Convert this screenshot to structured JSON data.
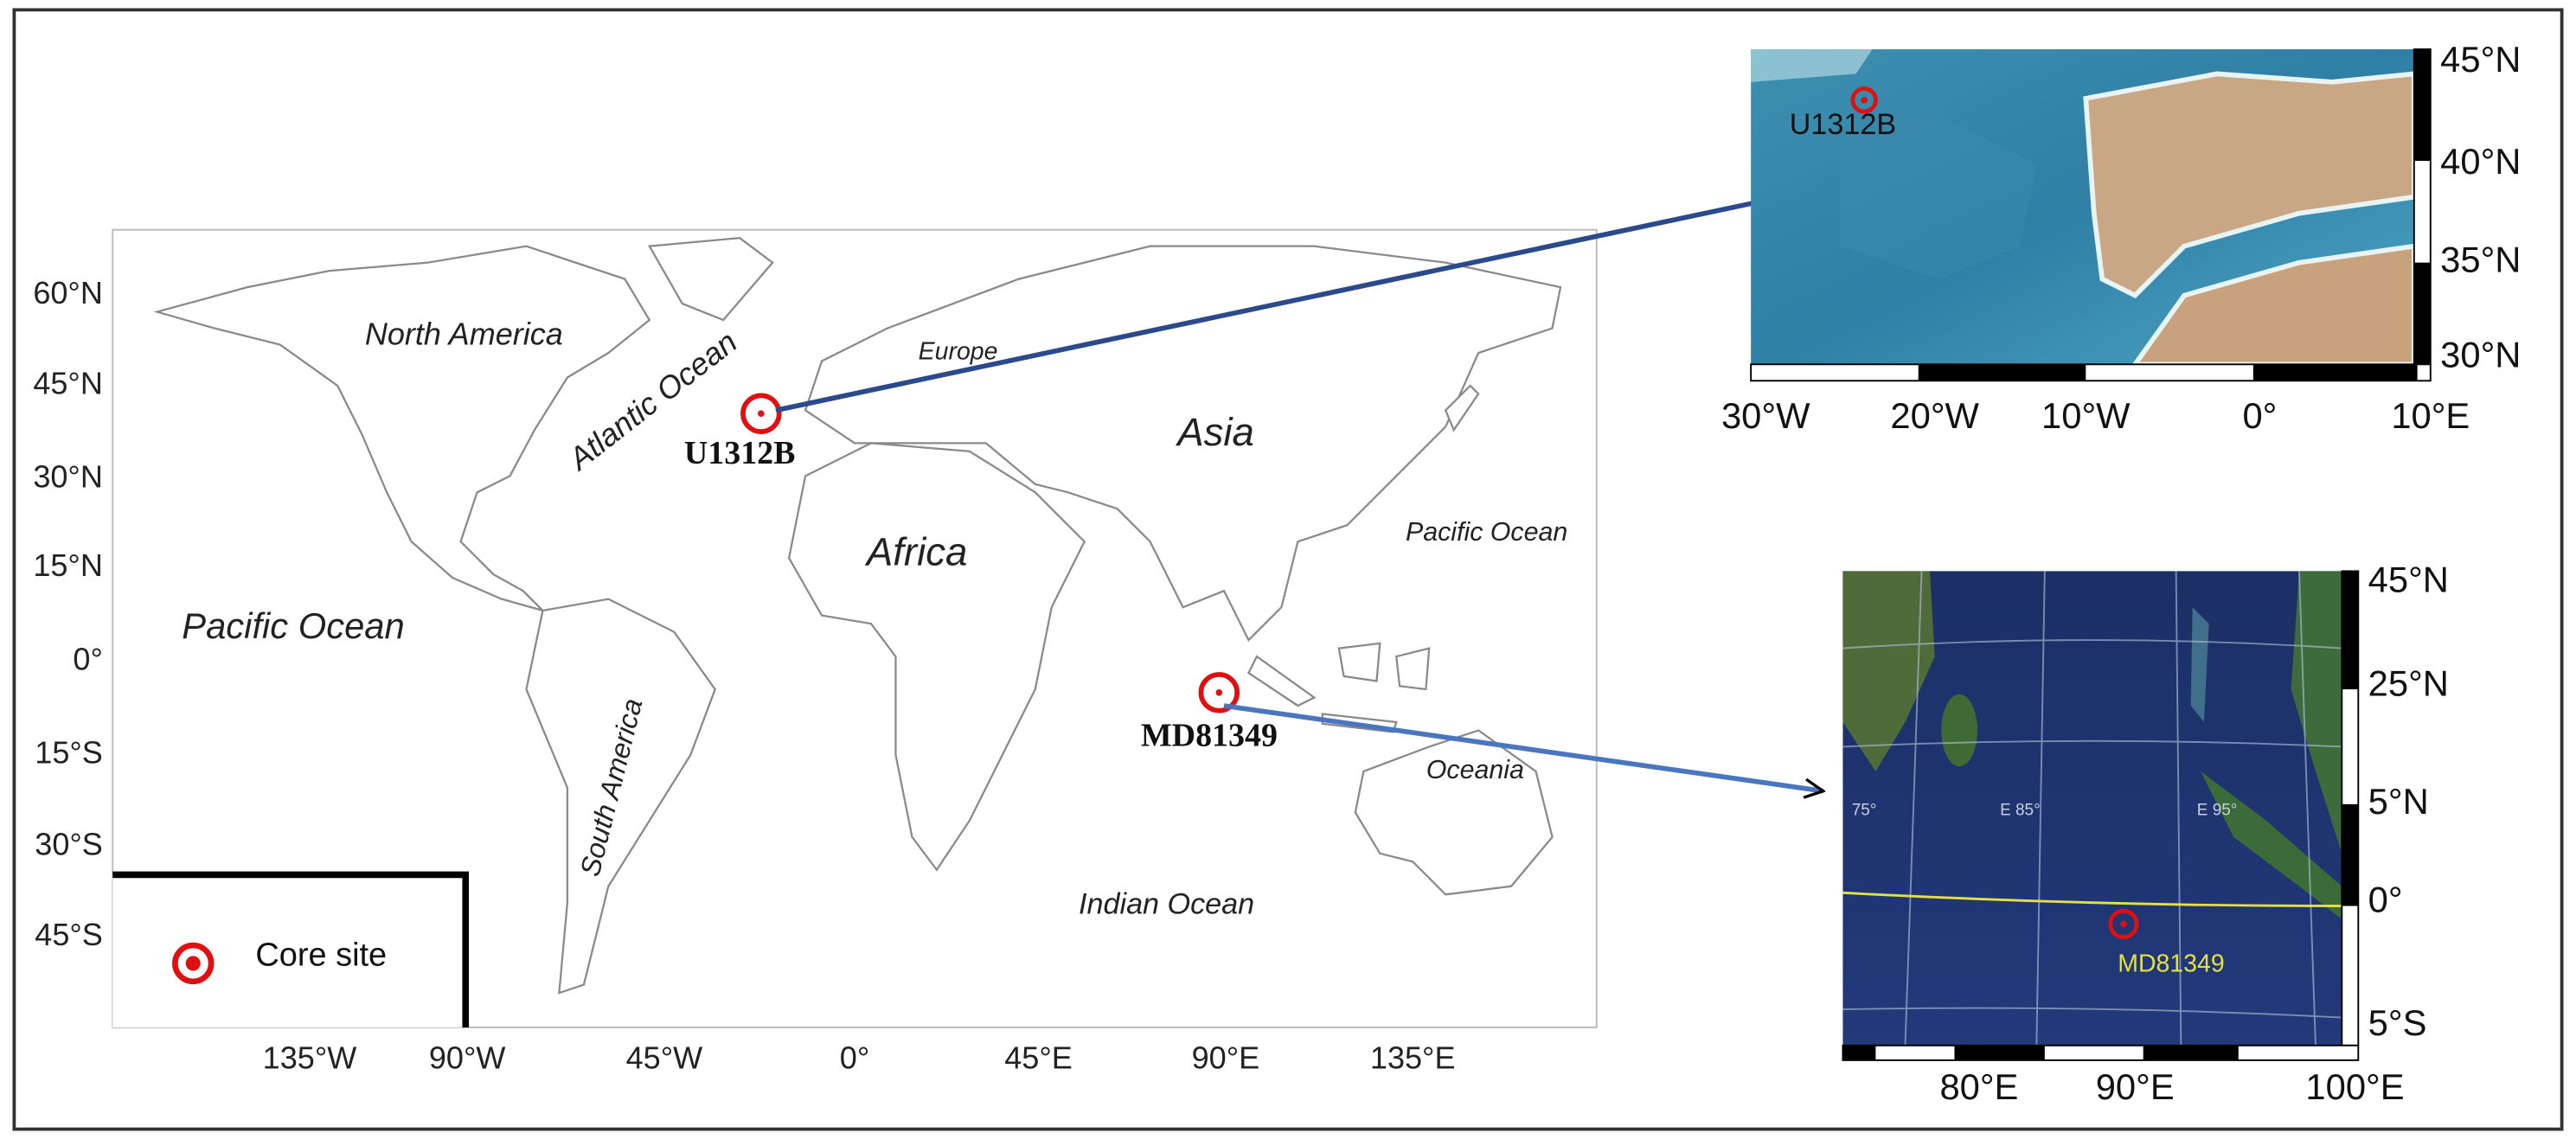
{
  "main_map": {
    "lat_labels": [
      "60°N",
      "45°N",
      "30°N",
      "15°N",
      "0°",
      "15°S",
      "30°S",
      "45°S"
    ],
    "lon_labels": [
      "135°W",
      "90°W",
      "45°W",
      "0°",
      "45°E",
      "90°E",
      "135°E"
    ],
    "regions": [
      "North America",
      "Atlantic Ocean",
      "Europe",
      "Asia",
      "Africa",
      "Pacific Ocean",
      "Pacific Ocean",
      "South America",
      "Oceania",
      "Indian Ocean"
    ],
    "sites": [
      "U1312B",
      "MD81349"
    ]
  },
  "legend": {
    "label": "Core site"
  },
  "inset_north_atlantic": {
    "lat_labels": [
      "45°N",
      "40°N",
      "35°N",
      "30°N"
    ],
    "lon_labels": [
      "30°W",
      "20°W",
      "10°W",
      "0°",
      "10°E"
    ],
    "site": "U1312B"
  },
  "inset_indian_ocean": {
    "lat_labels": [
      "45°N",
      "25°N",
      "5°N",
      "0°",
      "5°S"
    ],
    "lon_labels": [
      "80°E",
      "90°E",
      "100°E"
    ],
    "grid_labels": [
      "75°",
      "E 85°",
      "E 95°"
    ],
    "site": "MD81349"
  }
}
